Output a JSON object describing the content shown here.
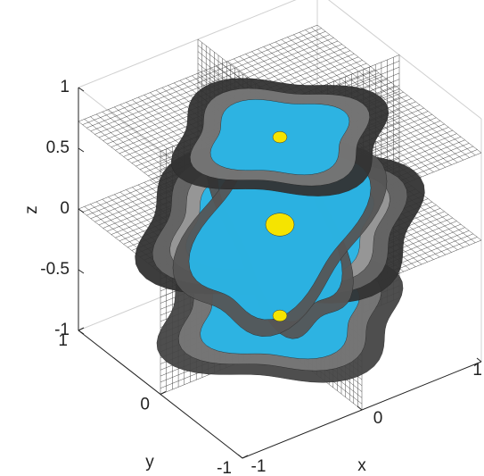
{
  "chart_data": {
    "type": "slice3d",
    "xlabel": "x",
    "ylabel": "y",
    "zlabel": "z",
    "xlim": [
      -1,
      1
    ],
    "ylim": [
      -1,
      1
    ],
    "zlim": [
      -1,
      1
    ],
    "xticks": [
      -1,
      0,
      1
    ],
    "yticks": [
      -1,
      0,
      1
    ],
    "zticks": [
      -1,
      -0.5,
      0,
      0.5,
      1
    ]
  }
}
